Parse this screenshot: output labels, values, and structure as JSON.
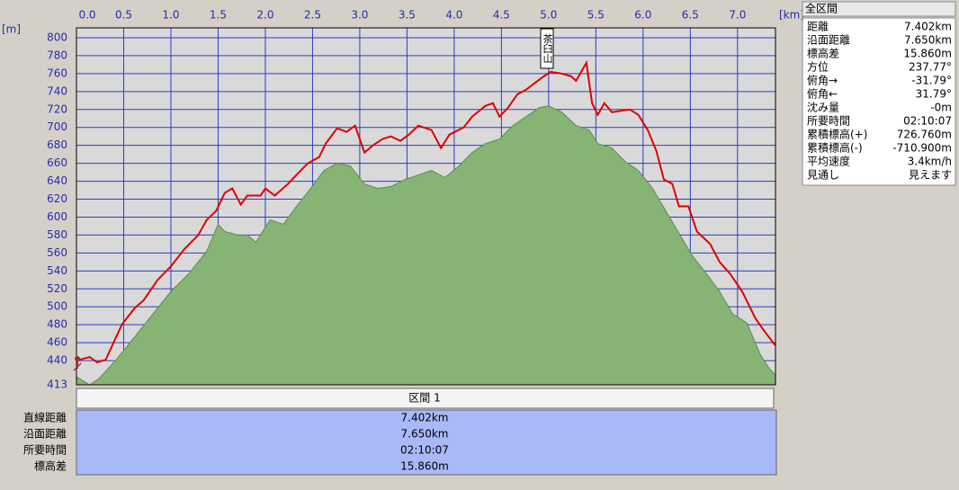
{
  "chart_data": {
    "type": "line",
    "xlabel": "[km]",
    "ylabel": "[m]",
    "annotation": "茶臼山",
    "xlim": [
      0,
      7.402
    ],
    "ylim": [
      413,
      811
    ],
    "xticks": [
      {
        "value": 0,
        "label": "0.0"
      },
      0.5,
      {
        "value": 1,
        "label": "1.0"
      },
      1.5,
      {
        "value": 2,
        "label": "2.0"
      },
      2.5,
      {
        "value": 3,
        "label": "3.0"
      },
      3.5,
      {
        "value": 4,
        "label": "4.0"
      },
      4.5,
      {
        "value": 5,
        "label": "5.0"
      },
      5.5,
      {
        "value": 6,
        "label": "6.0"
      },
      6.5,
      {
        "value": 7,
        "label": "7.0"
      }
    ],
    "yticks": [
      413,
      440,
      460,
      480,
      500,
      520,
      540,
      560,
      580,
      600,
      620,
      640,
      660,
      680,
      700,
      720,
      740,
      760,
      780,
      800
    ],
    "grid": true,
    "series": [
      {
        "color": "#86b474",
        "area": true,
        "x": [
          0,
          0.14,
          0.24,
          0.43,
          0.62,
          0.81,
          1.0,
          1.19,
          1.38,
          1.5,
          1.57,
          1.71,
          1.81,
          1.9,
          2.05,
          2.19,
          2.33,
          2.48,
          2.62,
          2.76,
          2.9,
          3.05,
          3.19,
          3.33,
          3.48,
          3.62,
          3.76,
          3.9,
          4.05,
          4.19,
          4.33,
          4.48,
          4.62,
          4.76,
          4.9,
          5.0,
          5.14,
          5.29,
          5.43,
          5.52,
          5.67,
          5.81,
          5.95,
          6.1,
          6.24,
          6.38,
          6.52,
          6.67,
          6.81,
          6.95,
          7.1,
          7.24,
          7.33,
          7.4
        ],
        "values": [
          422,
          413,
          420,
          442,
          467,
          492,
          517,
          537,
          562,
          592,
          584,
          580,
          580,
          572,
          597,
          592,
          612,
          632,
          652,
          660,
          657,
          637,
          632,
          634,
          642,
          647,
          652,
          644,
          657,
          672,
          682,
          687,
          702,
          712,
          722,
          724,
          717,
          702,
          697,
          682,
          677,
          662,
          652,
          632,
          607,
          582,
          557,
          537,
          517,
          492,
          482,
          447,
          432,
          424
        ]
      },
      {
        "color": "#e00000",
        "area": false,
        "x": [
          0,
          0.14,
          0.22,
          0.31,
          0.38,
          0.48,
          0.62,
          0.71,
          0.86,
          1.0,
          1.14,
          1.29,
          1.38,
          1.48,
          1.57,
          1.65,
          1.74,
          1.81,
          1.95,
          2.0,
          2.1,
          2.24,
          2.33,
          2.45,
          2.57,
          2.64,
          2.76,
          2.86,
          2.95,
          3.05,
          3.14,
          3.24,
          3.33,
          3.43,
          3.52,
          3.62,
          3.76,
          3.86,
          3.95,
          4.1,
          4.19,
          4.33,
          4.41,
          4.48,
          4.57,
          4.67,
          4.76,
          4.86,
          4.95,
          5.02,
          5.14,
          5.24,
          5.29,
          5.4,
          5.46,
          5.52,
          5.59,
          5.67,
          5.86,
          5.95,
          6.05,
          6.14,
          6.22,
          6.31,
          6.38,
          6.48,
          6.57,
          6.71,
          6.81,
          6.92,
          7.05,
          7.19,
          7.29,
          7.4
        ],
        "values": [
          440,
          444,
          438,
          441,
          457,
          480,
          499,
          507,
          530,
          545,
          564,
          580,
          597,
          607,
          627,
          632,
          614,
          624,
          624,
          632,
          624,
          637,
          647,
          660,
          667,
          682,
          699,
          695,
          702,
          672,
          680,
          687,
          690,
          685,
          692,
          702,
          697,
          677,
          692,
          700,
          712,
          724,
          727,
          712,
          722,
          737,
          742,
          750,
          757,
          762,
          760,
          757,
          752,
          772,
          727,
          714,
          727,
          717,
          720,
          714,
          697,
          674,
          642,
          637,
          612,
          612,
          584,
          570,
          550,
          537,
          517,
          487,
          472,
          457
        ]
      }
    ]
  },
  "summary_panel": {
    "title": "全区間",
    "rows": [
      [
        "距離",
        "7.402km"
      ],
      [
        "沿面距離",
        "7.650km"
      ],
      [
        "標高差",
        "15.860m"
      ],
      [
        "方位",
        "237.77°"
      ],
      [
        "俯角→",
        "-31.79°"
      ],
      [
        "俯角←",
        "31.79°"
      ],
      [
        "沈み量",
        "-0m"
      ],
      [
        "所要時間",
        "02:10:07"
      ],
      [
        "累積標高(+)",
        "726.760m"
      ],
      [
        "累積標高(-)",
        "-710.900m"
      ],
      [
        "平均速度",
        "3.4km/h"
      ],
      [
        "見通し",
        "見えます"
      ]
    ]
  },
  "segment_table": {
    "header": "区間 1",
    "rows": [
      [
        "直線距離",
        "7.402km"
      ],
      [
        "沿面距離",
        "7.650km"
      ],
      [
        "所要時間",
        "02:10:07"
      ],
      [
        "標高差",
        "15.860m"
      ]
    ]
  }
}
